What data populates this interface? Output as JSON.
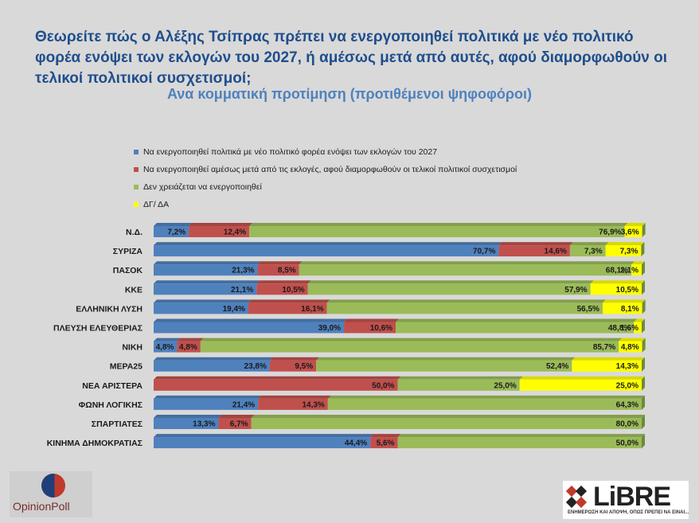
{
  "header": {
    "title": "Θεωρείτε πώς ο Αλέξης Τσίπρας πρέπει να ενεργοποιηθεί πολιτικά με νέο πολιτικό φορέα ενόψει των εκλογών του 2027, ή αμέσως μετά από αυτές, αφού διαμορφωθούν οι τελικοί πολιτικοί συσχετισμοί;",
    "subtitle": "Ανα κομματική προτίμηση (προτιθέμενοι ψηφοφόροι)"
  },
  "legend": [
    {
      "label": "Να ενεργοποιηθεί πολιτικά με νέο πολιτικό φορέα ενόψει των εκλογών του 2027",
      "color": "#4f81bd"
    },
    {
      "label": "Να ενεργοποιηθεί αμέσως μετά από τις εκλογές, αφού διαμορφωθούν οι τελικοί πολιτικοί συσχετισμοί",
      "color": "#c0504d"
    },
    {
      "label": "Δεν χρειάζεται να ενεργοποιηθεί",
      "color": "#9bbb59"
    },
    {
      "label": "ΔΓ/ ΔΑ",
      "color": "#ffff00"
    }
  ],
  "logos": {
    "opinionpoll": "OpinionPoll",
    "libre": "LiBRE",
    "libre_tagline": "ΕΝΗΜΕΡΩΣΗ ΚΑΙ ΑΠΟΨΗ, ΟΠΩΣ ΠΡΕΠΕΙ ΝΑ ΕΙΝΑΙ..."
  },
  "chart_data": {
    "type": "bar",
    "orientation": "horizontal",
    "stacked": true,
    "percent_stacked": true,
    "categories": [
      "Ν.Δ.",
      "ΣΥΡΙΖΑ",
      "ΠΑΣΟΚ",
      "ΚΚΕ",
      "ΕΛΛΗΝΙΚΗ ΛΥΣΗ",
      "ΠΛΕΥΣΗ ΕΛΕΥΘΕΡΙΑΣ",
      "ΝΙΚΗ",
      "ΜΕΡΑ25",
      "ΝΕΑ ΑΡΙΣΤΕΡΑ",
      "ΦΩΝΗ ΛΟΓΙΚΗΣ",
      "ΣΠΑΡΤΙΑΤΕΣ",
      "ΚΙΝΗΜΑ ΔΗΜΟΚΡΑΤΙΑΣ"
    ],
    "series": [
      {
        "name": "Να ενεργοποιηθεί πολιτικά με νέο πολιτικό φορέα ενόψει των εκλογών του 2027",
        "color": "#4f81bd",
        "values": [
          7.2,
          70.7,
          21.3,
          21.1,
          19.4,
          39.0,
          4.8,
          23.8,
          0,
          21.4,
          13.3,
          44.4
        ],
        "labels": [
          "7,2%",
          "70,7%",
          "21,3%",
          "21,1%",
          "19,4%",
          "39,0%",
          "4,8%",
          "23,8%",
          "",
          "21,4%",
          "13,3%",
          "44,4%"
        ]
      },
      {
        "name": "Να ενεργοποιηθεί αμέσως μετά από τις εκλογές, αφού διαμορφωθούν οι τελικοί πολιτικοί συσχετισμοί",
        "color": "#c0504d",
        "values": [
          12.4,
          14.6,
          8.5,
          10.5,
          16.1,
          10.6,
          4.8,
          9.5,
          50.0,
          14.3,
          6.7,
          5.6
        ],
        "labels": [
          "12,4%",
          "14,6%",
          "8,5%",
          "10,5%",
          "16,1%",
          "10,6%",
          "4,8%",
          "9,5%",
          "50,0%",
          "14,3%",
          "6,7%",
          "5,6%"
        ]
      },
      {
        "name": "Δεν χρειάζεται να ενεργοποιηθεί",
        "color": "#9bbb59",
        "values": [
          76.9,
          7.3,
          68.1,
          57.9,
          56.5,
          48.8,
          85.7,
          52.4,
          25.0,
          64.3,
          80.0,
          50.0
        ],
        "labels": [
          "76,9%",
          "7,3%",
          "68,1%",
          "57,9%",
          "56,5%",
          "48,8%",
          "85,7%",
          "52,4%",
          "25,0%",
          "64,3%",
          "80,0%",
          "50,0%"
        ]
      },
      {
        "name": "ΔΓ/ ΔΑ",
        "color": "#ffff00",
        "values": [
          3.6,
          7.3,
          2.1,
          10.5,
          8.1,
          1.6,
          4.8,
          14.3,
          25.0,
          0,
          0,
          0
        ],
        "labels": [
          "3,6%",
          "7,3%",
          "2,1%",
          "10,5%",
          "8,1%",
          "1,6%",
          "4,8%",
          "14,3%",
          "25,0%",
          "",
          "",
          ""
        ]
      }
    ],
    "xlim": [
      0,
      100
    ],
    "legend_position": "top",
    "grid": false
  }
}
